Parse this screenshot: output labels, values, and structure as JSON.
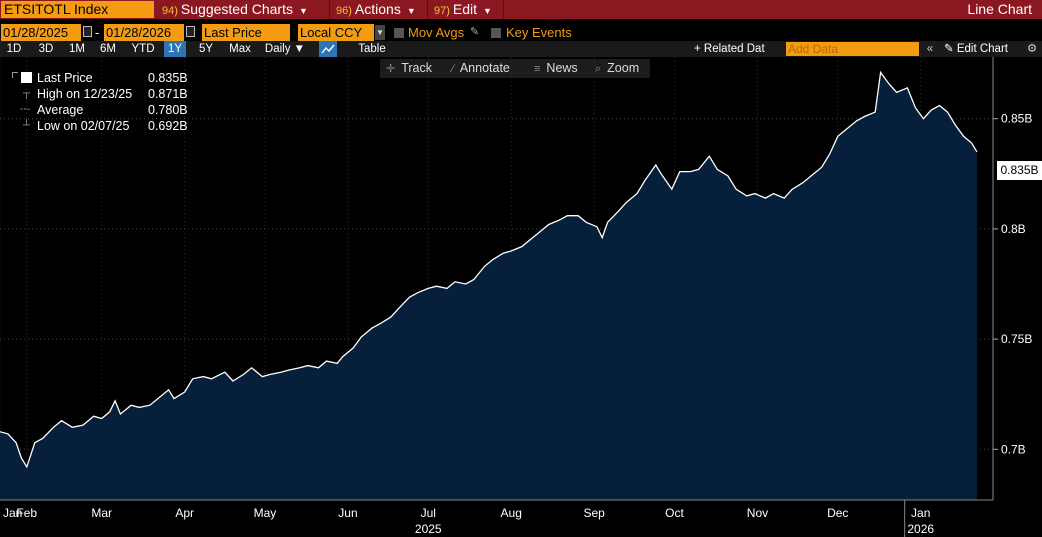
{
  "topbar": {
    "ticker": "ETSITOTL Index",
    "menu": [
      {
        "num": "94)",
        "label": "Suggested Charts"
      },
      {
        "num": "96)",
        "label": "Actions"
      },
      {
        "num": "97)",
        "label": "Edit"
      }
    ],
    "chart_type": "Line Chart"
  },
  "controls": {
    "start_date": "01/28/2025",
    "end_date": "01/28/2026",
    "field": "Last Price",
    "currency": "Local CCY",
    "mov_avgs": "Mov Avgs",
    "key_events": "Key Events"
  },
  "range_buttons": [
    "1D",
    "3D",
    "1M",
    "6M",
    "YTD",
    "1Y",
    "5Y",
    "Max"
  ],
  "active_range": "1Y",
  "period": "Daily",
  "table_label": "Table",
  "related_data": "Related Dat",
  "add_data_placeholder": "Add Data",
  "edit_chart": "Edit Chart",
  "toolbar": {
    "track": "Track",
    "annotate": "Annotate",
    "news": "News",
    "zoom": "Zoom"
  },
  "legend": {
    "last_label": "Last Price",
    "last_value": "0.835B",
    "high_label": "High on 12/23/25",
    "high_value": "0.871B",
    "avg_label": "Average",
    "avg_value": "0.780B",
    "low_label": "Low on 02/07/25",
    "low_value": "0.692B"
  },
  "last_tag": "0.835B",
  "colors": {
    "area_fill": "#061f3a",
    "line": "#ffffff",
    "accent": "#f39c12",
    "topbar": "#8b1820"
  },
  "chart_data": {
    "type": "area",
    "title": "",
    "xlabel": "",
    "ylabel": "",
    "ylim": [
      0.677,
      0.878
    ],
    "y_ticks": [
      "0.7B",
      "0.75B",
      "0.8B",
      "0.85B"
    ],
    "y_tick_values": [
      0.7,
      0.75,
      0.8,
      0.85
    ],
    "x_ticks": [
      "Jan",
      "Feb",
      "Mar",
      "Apr",
      "May",
      "Jun",
      "Jul",
      "Aug",
      "Sep",
      "Oct",
      "Nov",
      "Dec",
      "Jan"
    ],
    "x_tick_dates": [
      "2025-01-28",
      "2025-02-07",
      "2025-03-07",
      "2025-04-07",
      "2025-05-07",
      "2025-06-07",
      "2025-07-07",
      "2025-08-07",
      "2025-09-07",
      "2025-10-07",
      "2025-11-07",
      "2025-12-07",
      "2026-01-07"
    ],
    "year_labels": [
      {
        "label": "2025",
        "date": "2025-07-07"
      },
      {
        "label": "2026",
        "date": "2026-01-07"
      }
    ],
    "x_range": [
      "2025-01-28",
      "2026-02-03"
    ],
    "series": [
      {
        "values": [
          [
            "2025-01-28",
            0.708
          ],
          [
            "2025-01-31",
            0.707
          ],
          [
            "2025-02-03",
            0.703
          ],
          [
            "2025-02-05",
            0.696
          ],
          [
            "2025-02-07",
            0.692
          ],
          [
            "2025-02-10",
            0.703
          ],
          [
            "2025-02-13",
            0.705
          ],
          [
            "2025-02-17",
            0.71
          ],
          [
            "2025-02-20",
            0.713
          ],
          [
            "2025-02-24",
            0.71
          ],
          [
            "2025-02-28",
            0.711
          ],
          [
            "2025-03-04",
            0.715
          ],
          [
            "2025-03-07",
            0.714
          ],
          [
            "2025-03-10",
            0.717
          ],
          [
            "2025-03-12",
            0.722
          ],
          [
            "2025-03-14",
            0.716
          ],
          [
            "2025-03-18",
            0.72
          ],
          [
            "2025-03-21",
            0.719
          ],
          [
            "2025-03-25",
            0.72
          ],
          [
            "2025-03-28",
            0.723
          ],
          [
            "2025-04-01",
            0.727
          ],
          [
            "2025-04-03",
            0.723
          ],
          [
            "2025-04-07",
            0.726
          ],
          [
            "2025-04-10",
            0.732
          ],
          [
            "2025-04-14",
            0.733
          ],
          [
            "2025-04-17",
            0.732
          ],
          [
            "2025-04-22",
            0.735
          ],
          [
            "2025-04-25",
            0.731
          ],
          [
            "2025-04-29",
            0.734
          ],
          [
            "2025-05-02",
            0.737
          ],
          [
            "2025-05-06",
            0.733
          ],
          [
            "2025-05-09",
            0.734
          ],
          [
            "2025-05-13",
            0.735
          ],
          [
            "2025-05-16",
            0.736
          ],
          [
            "2025-05-20",
            0.737
          ],
          [
            "2025-05-23",
            0.738
          ],
          [
            "2025-05-27",
            0.737
          ],
          [
            "2025-05-30",
            0.74
          ],
          [
            "2025-06-03",
            0.739
          ],
          [
            "2025-06-05",
            0.742
          ],
          [
            "2025-06-09",
            0.746
          ],
          [
            "2025-06-12",
            0.751
          ],
          [
            "2025-06-16",
            0.755
          ],
          [
            "2025-06-19",
            0.757
          ],
          [
            "2025-06-23",
            0.76
          ],
          [
            "2025-06-26",
            0.764
          ],
          [
            "2025-06-30",
            0.769
          ],
          [
            "2025-07-03",
            0.771
          ],
          [
            "2025-07-07",
            0.773
          ],
          [
            "2025-07-10",
            0.774
          ],
          [
            "2025-07-14",
            0.773
          ],
          [
            "2025-07-17",
            0.776
          ],
          [
            "2025-07-21",
            0.775
          ],
          [
            "2025-07-24",
            0.777
          ],
          [
            "2025-07-28",
            0.783
          ],
          [
            "2025-07-31",
            0.786
          ],
          [
            "2025-08-04",
            0.789
          ],
          [
            "2025-08-07",
            0.79
          ],
          [
            "2025-08-11",
            0.792
          ],
          [
            "2025-08-14",
            0.795
          ],
          [
            "2025-08-18",
            0.799
          ],
          [
            "2025-08-21",
            0.802
          ],
          [
            "2025-08-25",
            0.804
          ],
          [
            "2025-08-28",
            0.806
          ],
          [
            "2025-09-01",
            0.806
          ],
          [
            "2025-09-04",
            0.803
          ],
          [
            "2025-09-08",
            0.801
          ],
          [
            "2025-09-10",
            0.796
          ],
          [
            "2025-09-12",
            0.803
          ],
          [
            "2025-09-16",
            0.808
          ],
          [
            "2025-09-19",
            0.812
          ],
          [
            "2025-09-23",
            0.816
          ],
          [
            "2025-09-26",
            0.822
          ],
          [
            "2025-09-30",
            0.829
          ],
          [
            "2025-10-02",
            0.825
          ],
          [
            "2025-10-06",
            0.818
          ],
          [
            "2025-10-09",
            0.826
          ],
          [
            "2025-10-13",
            0.826
          ],
          [
            "2025-10-16",
            0.827
          ],
          [
            "2025-10-20",
            0.833
          ],
          [
            "2025-10-23",
            0.827
          ],
          [
            "2025-10-27",
            0.824
          ],
          [
            "2025-10-30",
            0.818
          ],
          [
            "2025-11-03",
            0.815
          ],
          [
            "2025-11-06",
            0.816
          ],
          [
            "2025-11-10",
            0.814
          ],
          [
            "2025-11-13",
            0.816
          ],
          [
            "2025-11-17",
            0.814
          ],
          [
            "2025-11-20",
            0.818
          ],
          [
            "2025-11-24",
            0.821
          ],
          [
            "2025-11-27",
            0.824
          ],
          [
            "2025-12-01",
            0.828
          ],
          [
            "2025-12-04",
            0.834
          ],
          [
            "2025-12-07",
            0.842
          ],
          [
            "2025-12-11",
            0.846
          ],
          [
            "2025-12-14",
            0.849
          ],
          [
            "2025-12-17",
            0.851
          ],
          [
            "2025-12-21",
            0.853
          ],
          [
            "2025-12-23",
            0.871
          ],
          [
            "2025-12-26",
            0.866
          ],
          [
            "2025-12-29",
            0.862
          ],
          [
            "2026-01-02",
            0.864
          ],
          [
            "2026-01-05",
            0.855
          ],
          [
            "2026-01-08",
            0.85
          ],
          [
            "2026-01-11",
            0.854
          ],
          [
            "2026-01-14",
            0.856
          ],
          [
            "2026-01-17",
            0.853
          ],
          [
            "2026-01-20",
            0.847
          ],
          [
            "2026-01-23",
            0.842
          ],
          [
            "2026-01-26",
            0.839
          ],
          [
            "2026-01-28",
            0.835
          ]
        ]
      }
    ]
  }
}
